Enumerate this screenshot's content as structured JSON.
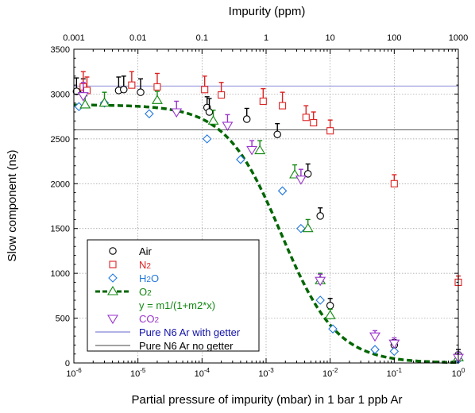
{
  "chart_data": {
    "type": "scatter",
    "xlabel": "Partial pressure of impurity (mbar) in 1 bar 1 ppb Ar",
    "x2label": "Impurity (ppm)",
    "ylabel": "Slow component (ns)",
    "xscale": "log",
    "xlim": [
      1e-06,
      1
    ],
    "ylim": [
      0,
      3500
    ],
    "grid": true,
    "legend_position": "bottom-left",
    "x_ticks": [
      {
        "v": 1e-06,
        "m": "10",
        "e": "-6"
      },
      {
        "v": 1e-05,
        "m": "10",
        "e": "-5"
      },
      {
        "v": 0.0001,
        "m": "10",
        "e": "-4"
      },
      {
        "v": 0.001,
        "m": "10",
        "e": "-3"
      },
      {
        "v": 0.01,
        "m": "10",
        "e": "-2"
      },
      {
        "v": 0.1,
        "m": "10",
        "e": "-1"
      },
      {
        "v": 1,
        "m": "10",
        "e": "0"
      }
    ],
    "x2_ticks": [
      {
        "v": 1e-06,
        "label": "0.001"
      },
      {
        "v": 1e-05,
        "label": "0.01"
      },
      {
        "v": 0.0001,
        "label": "0.1"
      },
      {
        "v": 0.001,
        "label": "1"
      },
      {
        "v": 0.01,
        "label": "10"
      },
      {
        "v": 0.1,
        "label": "100"
      },
      {
        "v": 1,
        "label": "1000"
      }
    ],
    "y_ticks": [
      0,
      500,
      1000,
      1500,
      2000,
      2500,
      3000,
      3500
    ],
    "series": [
      {
        "name": "Air",
        "marker": "circle",
        "color": "#000000",
        "points": [
          [
            1.1e-06,
            3030,
            150
          ],
          [
            1.4e-06,
            3050,
            120
          ],
          [
            5e-06,
            3040,
            150
          ],
          [
            6e-06,
            3050,
            150
          ],
          [
            1.1e-05,
            3020,
            150
          ],
          [
            0.00012,
            2850,
            120
          ],
          [
            0.00013,
            2800,
            150
          ],
          [
            0.0005,
            2720,
            120
          ],
          [
            0.0015,
            2550,
            120
          ],
          [
            0.0045,
            2110,
            110
          ],
          [
            0.007,
            1640,
            90
          ],
          [
            0.01,
            640,
            80
          ],
          [
            0.1,
            200,
            60
          ],
          [
            1,
            90,
            60
          ]
        ]
      },
      {
        "name": "N2",
        "marker": "square",
        "color": "#dd2222",
        "points": [
          [
            1.4e-06,
            3080,
            170
          ],
          [
            1.6e-06,
            3040,
            150
          ],
          [
            8e-06,
            3100,
            150
          ],
          [
            2e-05,
            3080,
            150
          ],
          [
            0.00011,
            3050,
            150
          ],
          [
            0.0002,
            2990,
            140
          ],
          [
            0.0009,
            2920,
            140
          ],
          [
            0.0018,
            2870,
            150
          ],
          [
            0.0042,
            2740,
            130
          ],
          [
            0.0055,
            2680,
            120
          ],
          [
            0.01,
            2590,
            120
          ],
          [
            0.1,
            2000,
            100
          ],
          [
            1,
            900,
            70
          ]
        ]
      },
      {
        "name": "H2O",
        "marker": "diamond",
        "color": "#2277dd",
        "points": [
          [
            1.2e-06,
            2860,
            0
          ],
          [
            3e-06,
            2900,
            0
          ],
          [
            1.5e-05,
            2780,
            0
          ],
          [
            0.00012,
            2500,
            0
          ],
          [
            0.0004,
            2270,
            0
          ],
          [
            0.0018,
            1920,
            0
          ],
          [
            0.0035,
            1500,
            0
          ],
          [
            0.007,
            700,
            0
          ],
          [
            0.011,
            380,
            0
          ],
          [
            0.05,
            150,
            0
          ],
          [
            0.1,
            130,
            0
          ],
          [
            1,
            40,
            0
          ]
        ]
      },
      {
        "name": "O2",
        "marker": "triangle-up",
        "color": "#118811",
        "points": [
          [
            1.5e-06,
            2880,
            100
          ],
          [
            3e-06,
            2900,
            120
          ],
          [
            2e-05,
            2930,
            100
          ],
          [
            0.00015,
            2700,
            120
          ],
          [
            0.0008,
            2370,
            110
          ],
          [
            0.0028,
            2100,
            110
          ],
          [
            0.0045,
            1500,
            100
          ],
          [
            0.007,
            920,
            80
          ],
          [
            0.01,
            530,
            70
          ],
          [
            1,
            60,
            60
          ]
        ]
      },
      {
        "name": "CO2",
        "marker": "triangle-down",
        "color": "#9933cc",
        "points": [
          [
            1.4e-06,
            2980,
            150
          ],
          [
            4e-05,
            2800,
            120
          ],
          [
            0.00025,
            2650,
            120
          ],
          [
            0.0006,
            2380,
            100
          ],
          [
            0.0035,
            2050,
            110
          ],
          [
            0.007,
            920,
            70
          ],
          [
            0.05,
            300,
            60
          ],
          [
            0.1,
            220,
            60
          ],
          [
            1,
            60,
            60
          ]
        ]
      }
    ],
    "fit": {
      "name": "y = m1/(1+m2*x)",
      "m1": 2880,
      "m2": 580,
      "color": "#006600"
    },
    "reference_lines": [
      {
        "name": "Pure N6 Ar with getter",
        "y": 3090,
        "color": "#6666cc"
      },
      {
        "name": "Pure N6 Ar no getter",
        "y": 2600,
        "color": "#444444"
      }
    ],
    "legend_entries": [
      {
        "key": "air",
        "label": "Air",
        "label_sub": "",
        "color": "#000000",
        "text_color": "#000000",
        "marker": "circle"
      },
      {
        "key": "n2",
        "label": "N",
        "label_sub": "2",
        "color": "#dd2222",
        "text_color": "#dd2222",
        "marker": "square"
      },
      {
        "key": "h2o",
        "label": "H",
        "label_sub": "2",
        "label_tail": "O",
        "color": "#2277dd",
        "text_color": "#2277dd",
        "marker": "diamond"
      },
      {
        "key": "o2",
        "label": "O",
        "label_sub": "2",
        "color": "#118811",
        "text_color": "#118811",
        "marker": "triangle-up",
        "dashed": true
      },
      {
        "key": "fit",
        "label": "y = m1/(1+m2*x)",
        "label_sub": "",
        "color": "#118811",
        "text_color": "#118811",
        "marker": "none"
      },
      {
        "key": "co2",
        "label": "CO",
        "label_sub": "2",
        "color": "#9933cc",
        "text_color": "#9933cc",
        "marker": "triangle-down"
      },
      {
        "key": "getter",
        "label": "Pure N6 Ar with getter",
        "label_sub": "",
        "color": "#6666cc",
        "text_color": "#1111aa",
        "marker": "line"
      },
      {
        "key": "nogetter",
        "label": "Pure N6 Ar no getter",
        "label_sub": "",
        "color": "#444444",
        "text_color": "#000000",
        "marker": "line"
      }
    ]
  }
}
